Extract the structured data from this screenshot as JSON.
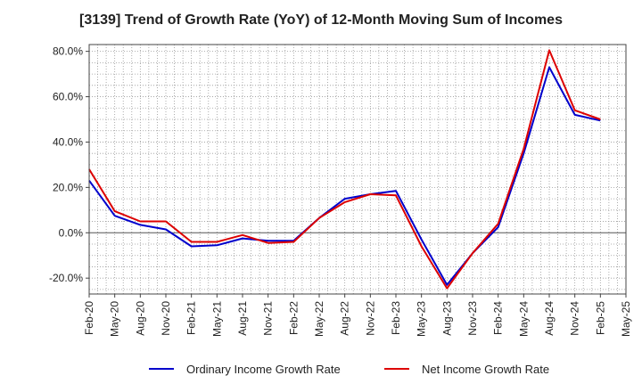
{
  "chart_data": {
    "type": "line",
    "title": "[3139]  Trend of Growth Rate (YoY) of 12-Month Moving Sum of Incomes",
    "xlabel": "",
    "ylabel": "",
    "categories": [
      "Feb-20",
      "May-20",
      "Aug-20",
      "Nov-20",
      "Feb-21",
      "May-21",
      "Aug-21",
      "Nov-21",
      "Feb-22",
      "May-22",
      "Aug-22",
      "Nov-22",
      "Feb-23",
      "May-23",
      "Aug-23",
      "Nov-23",
      "Feb-24",
      "May-24",
      "Aug-24",
      "Nov-24",
      "Feb-25",
      "May-25"
    ],
    "y_ticks": [
      80,
      60,
      40,
      20,
      0,
      -20
    ],
    "y_tick_labels": [
      "80.0%",
      "60.0%",
      "40.0%",
      "20.0%",
      "0.0%",
      "-20.0%"
    ],
    "ylim": [
      -27,
      83
    ],
    "grid": true,
    "legend_position": "bottom",
    "series": [
      {
        "name": "Ordinary Income Growth Rate",
        "color": "#0000cc",
        "values": [
          23.0,
          7.5,
          3.5,
          1.5,
          -6.0,
          -5.5,
          -2.5,
          -3.5,
          -3.5,
          6.5,
          15.0,
          17.0,
          18.5,
          -3.0,
          -23.0,
          -9.0,
          2.5,
          35.0,
          73.0,
          52.0,
          49.5,
          null
        ]
      },
      {
        "name": "Net Income Growth Rate",
        "color": "#dd0000",
        "values": [
          28.0,
          9.5,
          5.0,
          5.0,
          -4.0,
          -4.0,
          -1.0,
          -4.5,
          -4.0,
          6.5,
          13.5,
          17.0,
          16.5,
          -6.0,
          -24.5,
          -9.0,
          4.0,
          37.0,
          80.5,
          54.0,
          50.0,
          null
        ]
      }
    ]
  }
}
